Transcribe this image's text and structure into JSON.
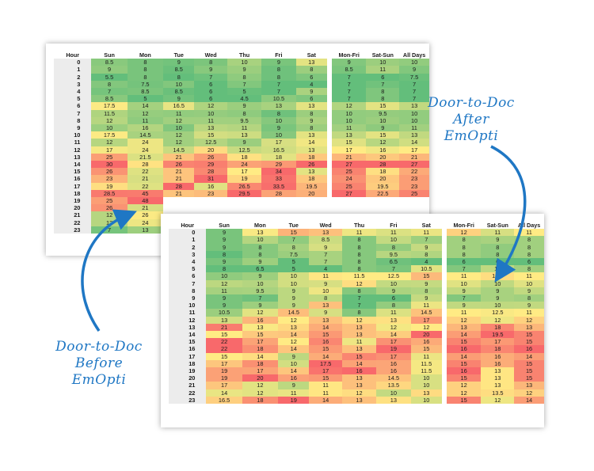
{
  "chart_data": [
    {
      "type": "heatmap",
      "title": "Door-to-Doc Before EmOpti",
      "row_header": "Hour",
      "rows": [
        "0",
        "1",
        "2",
        "3",
        "4",
        "5",
        "6",
        "7",
        "8",
        "9",
        "10",
        "11",
        "12",
        "13",
        "14",
        "15",
        "16",
        "17",
        "18",
        "19",
        "20",
        "21",
        "22",
        "23"
      ],
      "columns": [
        "Sun",
        "Mon",
        "Tue",
        "Wed",
        "Thu",
        "Fri",
        "Sat",
        "Mon-Fri",
        "Sat-Sun",
        "All Days"
      ],
      "values": [
        [
          "8.5",
          "8",
          "9",
          "8",
          "10",
          "9",
          "13",
          "9",
          "10",
          "10"
        ],
        [
          "9",
          "8",
          "8.5",
          "9",
          "9",
          "8",
          "8",
          "8.5",
          "11",
          "9"
        ],
        [
          "5.5",
          "8",
          "8",
          "7",
          "8",
          "8",
          "6",
          "7",
          "6",
          "7.5"
        ],
        [
          "8",
          "7.5",
          "10",
          "6",
          "7",
          "7",
          "4",
          "7",
          "7",
          "7"
        ],
        [
          "7",
          "8.5",
          "8.5",
          "6",
          "5",
          "7",
          "9",
          "7",
          "8",
          "7"
        ],
        [
          "8.5",
          "5",
          "9",
          "6",
          "4.5",
          "10.5",
          "6",
          "7",
          "8",
          "7"
        ],
        [
          "17.5",
          "14",
          "16.5",
          "12",
          "9",
          "13",
          "13",
          "12",
          "15",
          "13"
        ],
        [
          "11.5",
          "12",
          "11",
          "10",
          "8",
          "8",
          "8",
          "10",
          "9.5",
          "10"
        ],
        [
          "12",
          "11",
          "12",
          "11",
          "9.5",
          "10",
          "9",
          "10",
          "10",
          "10"
        ],
        [
          "10",
          "16",
          "10",
          "13",
          "11",
          "9",
          "8",
          "11",
          "9",
          "11"
        ],
        [
          "17.5",
          "14.5",
          "12",
          "15",
          "13",
          "10",
          "13",
          "13",
          "15",
          "13"
        ],
        [
          "12",
          "24",
          "12",
          "12.5",
          "9",
          "17",
          "14",
          "15",
          "12",
          "14"
        ],
        [
          "17",
          "24",
          "14.5",
          "20",
          "12.5",
          "16.5",
          "13",
          "17",
          "16",
          "17"
        ],
        [
          "25",
          "21.5",
          "21",
          "26",
          "18",
          "18",
          "18",
          "21",
          "20",
          "21"
        ],
        [
          "30",
          "28",
          "26",
          "29",
          "24",
          "29",
          "26",
          "27",
          "28",
          "27"
        ],
        [
          "26",
          "22",
          "21",
          "28",
          "17",
          "34",
          "13",
          "25",
          "18",
          "22"
        ],
        [
          "23",
          "21",
          "21",
          "31",
          "19",
          "33",
          "18",
          "24",
          "20",
          "23"
        ],
        [
          "19",
          "22",
          "28",
          "16",
          "26.5",
          "33.5",
          "19.5",
          "25",
          "19.5",
          "23"
        ],
        [
          "28.5",
          "45",
          "21",
          "23",
          "29.5",
          "28",
          "20",
          "27",
          "22.5",
          "25"
        ],
        [
          "25",
          "48",
          "",
          "",
          "",
          "",
          "",
          "",
          "",
          ""
        ],
        [
          "26",
          "21",
          "",
          "",
          "",
          "",
          "",
          "",
          "",
          ""
        ],
        [
          "12",
          "26",
          "",
          "",
          "",
          "",
          "",
          "",
          "",
          ""
        ],
        [
          "12",
          "24",
          "",
          "",
          "",
          "",
          "",
          "",
          "",
          ""
        ],
        [
          "7",
          "13",
          "",
          "",
          "",
          "",
          "",
          "",
          "",
          ""
        ]
      ]
    },
    {
      "type": "heatmap",
      "title": "Door-to-Doc After EmOpti",
      "row_header": "Hour",
      "rows": [
        "0",
        "1",
        "2",
        "3",
        "4",
        "5",
        "6",
        "7",
        "8",
        "9",
        "10",
        "11",
        "12",
        "13",
        "14",
        "15",
        "16",
        "17",
        "18",
        "19",
        "20",
        "21",
        "22",
        "23"
      ],
      "columns": [
        "Sun",
        "Mon",
        "Tue",
        "Wed",
        "Thu",
        "Fri",
        "Sat",
        "Mon-Fri",
        "Sat-Sun",
        "All Days"
      ],
      "values": [
        [
          "9",
          "13",
          "15",
          "13",
          "11",
          "11",
          "11",
          "12",
          "11",
          "11"
        ],
        [
          "9",
          "10",
          "7",
          "8.5",
          "8",
          "10",
          "7",
          "8",
          "9",
          "8"
        ],
        [
          "9",
          "8",
          "8",
          "9",
          "8",
          "8",
          "9",
          "8",
          "8",
          "8"
        ],
        [
          "8",
          "8",
          "7.5",
          "7",
          "8",
          "9.5",
          "8",
          "8",
          "8",
          "8"
        ],
        [
          "9",
          "9",
          "5",
          "7",
          "8",
          "6.5",
          "4",
          "6",
          "6",
          "6"
        ],
        [
          "8",
          "6.5",
          "5",
          "4",
          "8",
          "7",
          "10.5",
          "7",
          "10",
          "8"
        ],
        [
          "10",
          "9",
          "10",
          "11",
          "11.5",
          "12.5",
          "15",
          "11",
          "13.5",
          "11"
        ],
        [
          "12",
          "10",
          "10",
          "9",
          "12",
          "10",
          "9",
          "10",
          "10",
          "10"
        ],
        [
          "11",
          "9.5",
          "9",
          "10",
          "8",
          "9",
          "8",
          "9",
          "9",
          "9"
        ],
        [
          "9",
          "7",
          "9",
          "8",
          "7",
          "6",
          "9",
          "7",
          "9",
          "8"
        ],
        [
          "9",
          "9",
          "9",
          "13",
          "7",
          "8",
          "11",
          "9",
          "10",
          "9"
        ],
        [
          "10.5",
          "12",
          "14.5",
          "9",
          "8",
          "11",
          "14.5",
          "11",
          "12.5",
          "11"
        ],
        [
          "13",
          "16",
          "12",
          "13",
          "12",
          "13",
          "17",
          "12",
          "12",
          "12"
        ],
        [
          "21",
          "13",
          "13",
          "14",
          "13",
          "12",
          "12",
          "13",
          "18",
          "13"
        ],
        [
          "15",
          "15",
          "14",
          "15",
          "13",
          "14",
          "20",
          "14",
          "19.5",
          "15"
        ],
        [
          "22",
          "17",
          "12",
          "16",
          "11",
          "17",
          "16",
          "15",
          "17",
          "15"
        ],
        [
          "22",
          "18",
          "14",
          "15",
          "13",
          "19",
          "15",
          "16",
          "18",
          "16"
        ],
        [
          "15",
          "14",
          "9",
          "14",
          "15",
          "17",
          "11",
          "14",
          "16",
          "14"
        ],
        [
          "17",
          "18",
          "10",
          "17.5",
          "14",
          "16",
          "11.5",
          "15",
          "16",
          "15"
        ],
        [
          "19",
          "17",
          "14",
          "17",
          "16",
          "16",
          "11.5",
          "16",
          "13",
          "15"
        ],
        [
          "19",
          "20",
          "16",
          "15",
          "13",
          "14.5",
          "10",
          "15",
          "13",
          "15"
        ],
        [
          "17",
          "12",
          "9",
          "11",
          "13",
          "13.5",
          "10",
          "12",
          "13",
          "13"
        ],
        [
          "14",
          "12",
          "11",
          "11",
          "12",
          "10",
          "13",
          "12",
          "13.5",
          "12"
        ],
        [
          "16.5",
          "18",
          "19",
          "14",
          "13",
          "13",
          "10",
          "15",
          "12",
          "14"
        ]
      ]
    }
  ],
  "annotations": {
    "before_label": [
      "Door-to-Doc",
      "Before",
      "EmOpti"
    ],
    "after_label": [
      "Door-to-Doc",
      "After",
      "EmOpti"
    ]
  },
  "colors": {
    "green": "#63be7b",
    "yellow": "#ffeb84",
    "red": "#f8696b",
    "arrow": "#1f77c4"
  }
}
